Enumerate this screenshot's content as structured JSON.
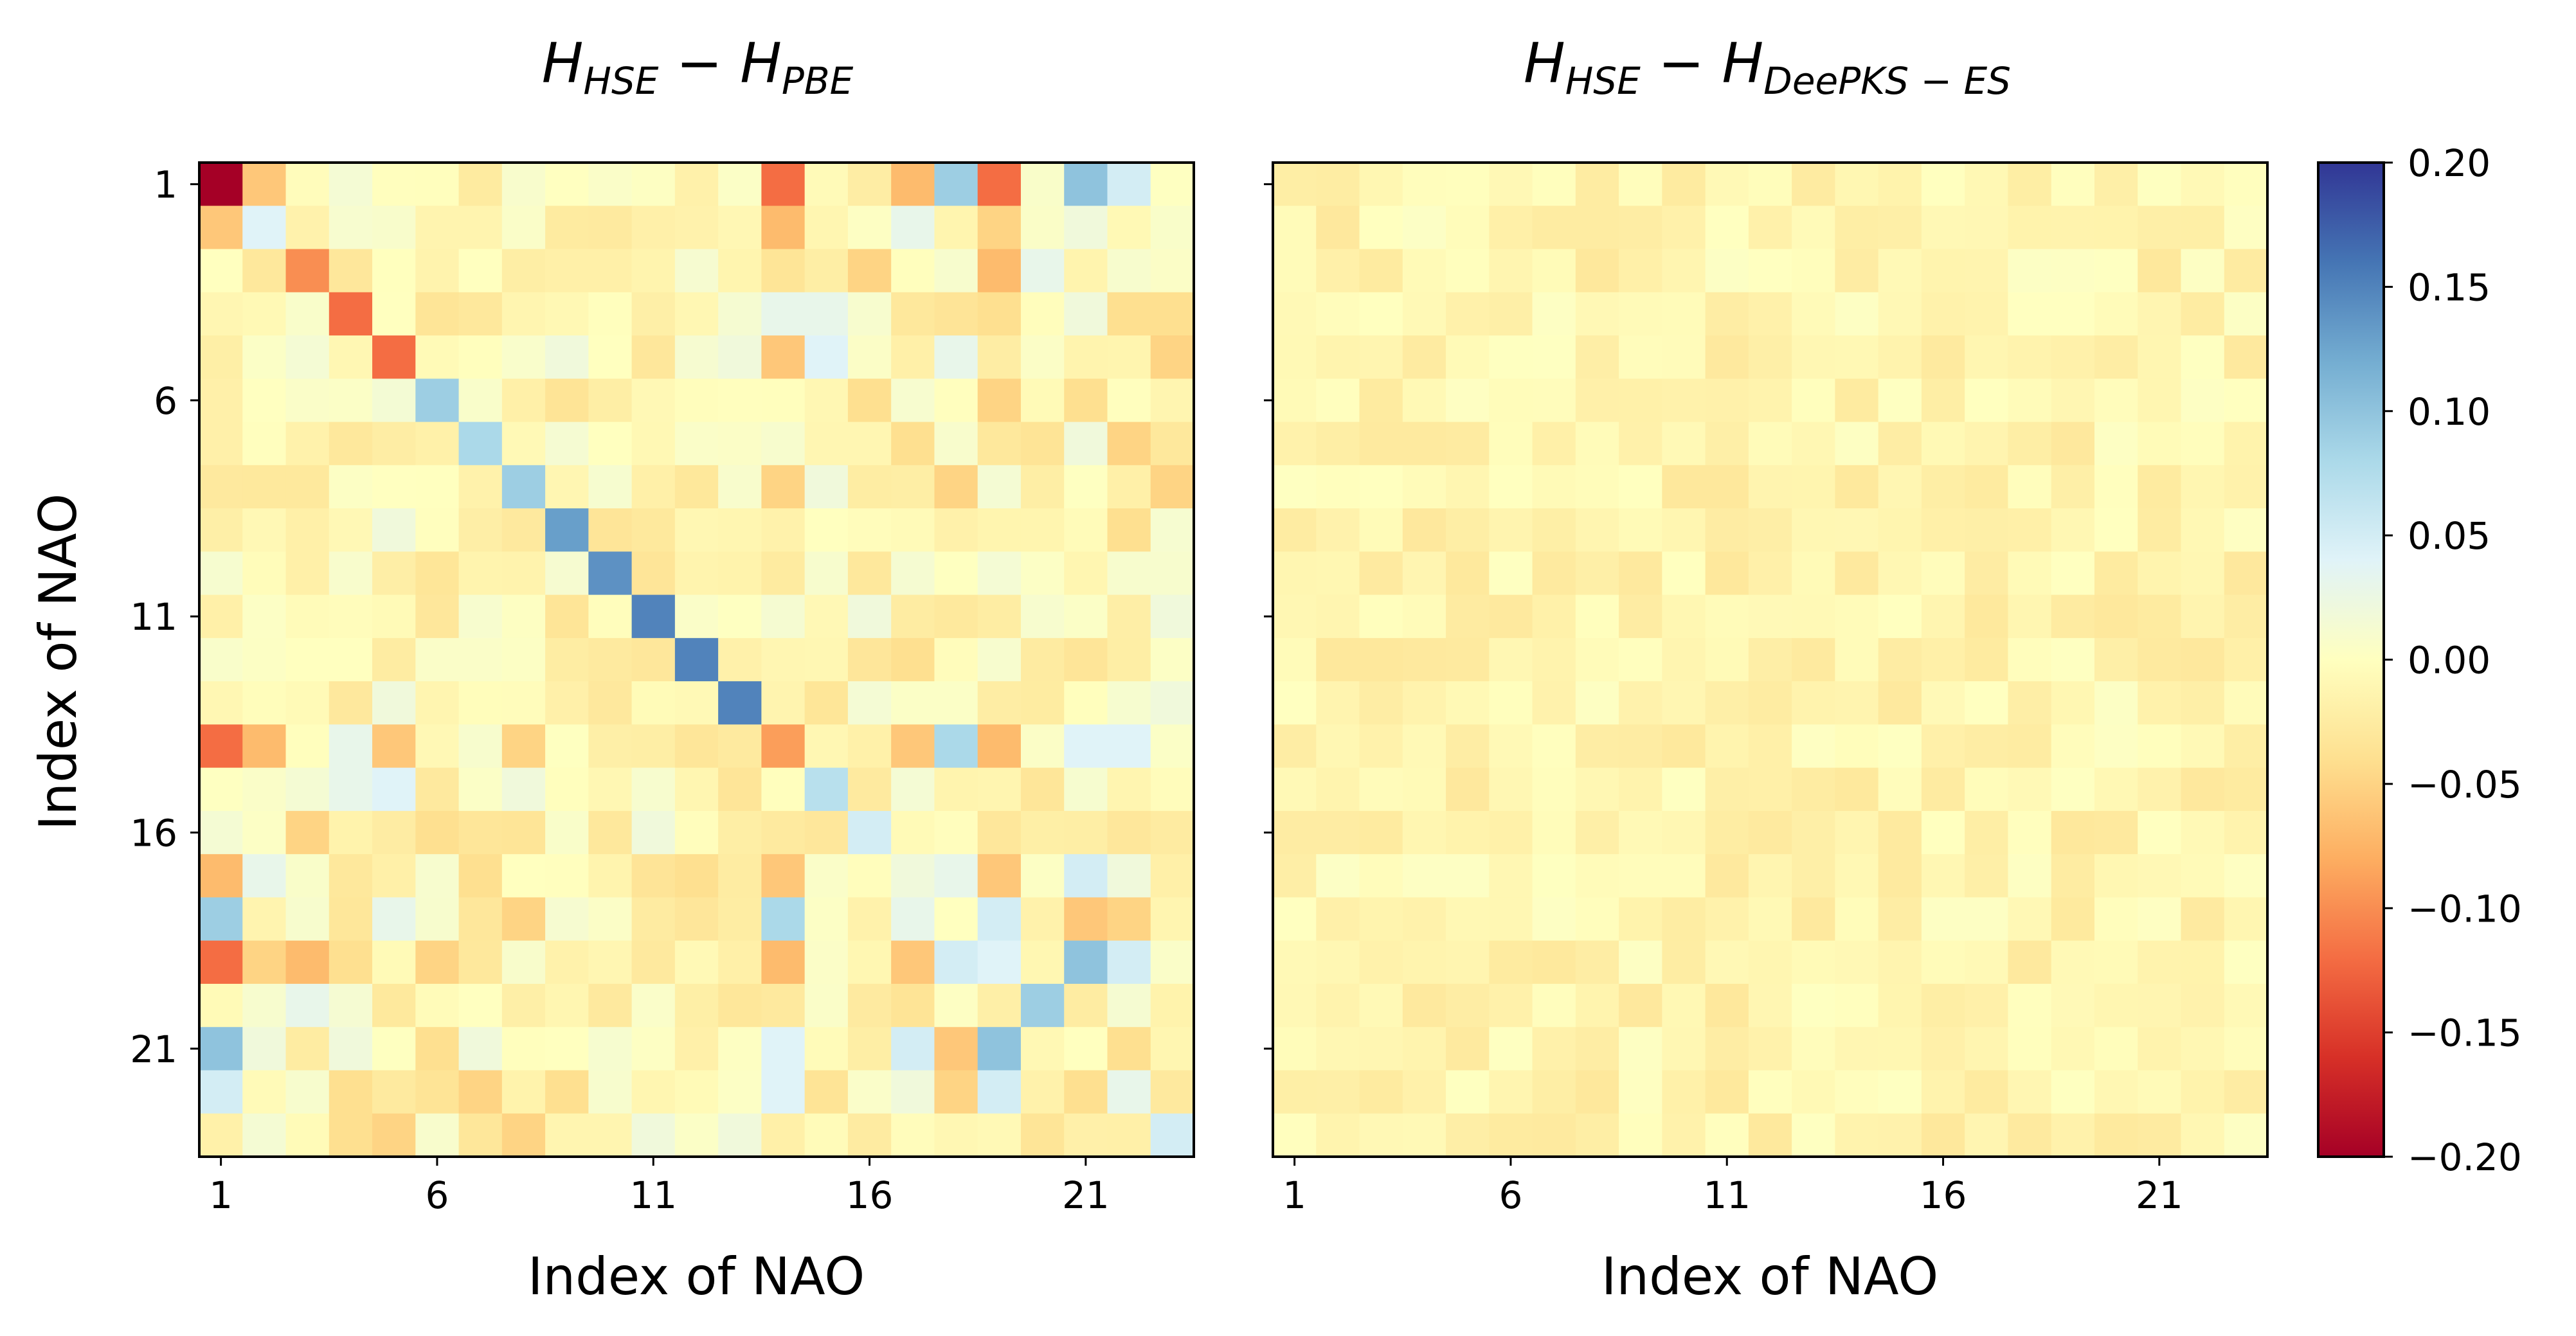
{
  "chart_data": [
    {
      "type": "heatmap",
      "title": {
        "base1": "H",
        "sub1": "HSE",
        "op": " − ",
        "base2": "H",
        "sub2": "PBE"
      },
      "xlabel": "Index of NAO",
      "ylabel": "Index of NAO",
      "xticks": [
        "1",
        "6",
        "11",
        "16",
        "21"
      ],
      "yticks": [
        "1",
        "6",
        "11",
        "16",
        "21"
      ],
      "size": 23,
      "diagonal": [
        -0.2,
        0.04,
        -0.1,
        -0.12,
        -0.12,
        0.09,
        0.08,
        0.09,
        0.13,
        0.14,
        0.15,
        0.15,
        0.15,
        -0.09,
        0.07,
        0.05,
        0.02,
        0.0,
        0.04,
        0.09,
        0.0,
        0.03,
        0.05
      ],
      "offdiagonal": [
        {
          "i": 1,
          "j": 2,
          "v": -0.06
        },
        {
          "i": 1,
          "j": 14,
          "v": -0.12
        },
        {
          "i": 1,
          "j": 17,
          "v": -0.07
        },
        {
          "i": 1,
          "j": 18,
          "v": 0.09
        },
        {
          "i": 1,
          "j": 19,
          "v": -0.12
        },
        {
          "i": 1,
          "j": 21,
          "v": 0.1
        },
        {
          "i": 1,
          "j": 22,
          "v": 0.05
        },
        {
          "i": 14,
          "j": 2,
          "v": -0.07
        },
        {
          "i": 14,
          "j": 4,
          "v": 0.03
        },
        {
          "i": 14,
          "j": 5,
          "v": -0.06
        },
        {
          "i": 14,
          "j": 7,
          "v": 0.01
        },
        {
          "i": 14,
          "j": 8,
          "v": -0.03
        },
        {
          "i": 14,
          "j": 17,
          "v": -0.06
        },
        {
          "i": 14,
          "j": 18,
          "v": 0.08
        },
        {
          "i": 14,
          "j": 19,
          "v": -0.07
        },
        {
          "i": 14,
          "j": 21,
          "v": 0.04
        },
        {
          "i": 14,
          "j": 22,
          "v": 0.04
        },
        {
          "i": 17,
          "j": 2,
          "v": 0.03
        },
        {
          "i": 17,
          "j": 4,
          "v": -0.03
        },
        {
          "i": 17,
          "j": 5,
          "v": -0.02
        },
        {
          "i": 17,
          "j": 7,
          "v": -0.03
        },
        {
          "i": 17,
          "j": 18,
          "v": 0.03
        },
        {
          "i": 17,
          "j": 19,
          "v": -0.06
        },
        {
          "i": 17,
          "j": 21,
          "v": 0.05
        },
        {
          "i": 17,
          "j": 22,
          "v": 0.02
        },
        {
          "i": 18,
          "j": 3,
          "v": 0.01
        },
        {
          "i": 18,
          "j": 5,
          "v": 0.03
        },
        {
          "i": 18,
          "j": 19,
          "v": 0.05
        },
        {
          "i": 18,
          "j": 21,
          "v": -0.06
        },
        {
          "i": 18,
          "j": 22,
          "v": -0.05
        },
        {
          "i": 19,
          "j": 2,
          "v": -0.05
        },
        {
          "i": 19,
          "j": 3,
          "v": -0.07
        },
        {
          "i": 19,
          "j": 4,
          "v": -0.04
        },
        {
          "i": 19,
          "j": 6,
          "v": -0.04
        },
        {
          "i": 19,
          "j": 7,
          "v": -0.03
        },
        {
          "i": 19,
          "j": 21,
          "v": 0.1
        },
        {
          "i": 19,
          "j": 22,
          "v": 0.05
        },
        {
          "i": 21,
          "j": 2,
          "v": 0.02
        },
        {
          "i": 21,
          "j": 4,
          "v": 0.02
        },
        {
          "i": 21,
          "j": 6,
          "v": -0.03
        },
        {
          "i": 21,
          "j": 7,
          "v": 0.01
        },
        {
          "i": 21,
          "j": 22,
          "v": -0.04
        },
        {
          "i": 22,
          "j": 3,
          "v": 0.02
        },
        {
          "i": 22,
          "j": 4,
          "v": -0.04
        },
        {
          "i": 22,
          "j": 7,
          "v": -0.04
        },
        {
          "i": 22,
          "j": 9,
          "v": -0.03
        },
        {
          "i": 22,
          "j": 10,
          "v": 0.01
        },
        {
          "i": 3,
          "j": 9,
          "v": -0.02
        },
        {
          "i": 3,
          "j": 10,
          "v": -0.02
        },
        {
          "i": 3,
          "j": 16,
          "v": -0.05
        },
        {
          "i": 3,
          "j": 20,
          "v": 0.05
        },
        {
          "i": 3,
          "j": 22,
          "v": 0.01
        },
        {
          "i": 4,
          "j": 7,
          "v": -0.03
        },
        {
          "i": 4,
          "j": 15,
          "v": 0.03
        },
        {
          "i": 4,
          "j": 21,
          "v": 0.02
        },
        {
          "i": 4,
          "j": 23,
          "v": -0.04
        },
        {
          "i": 5,
          "j": 23,
          "v": -0.06
        },
        {
          "i": 5,
          "j": 9,
          "v": 0.02
        },
        {
          "i": 5,
          "j": 13,
          "v": 0.02
        },
        {
          "i": 6,
          "j": 16,
          "v": -0.05
        },
        {
          "i": 6,
          "j": 19,
          "v": -0.05
        },
        {
          "i": 6,
          "j": 21,
          "v": -0.04
        },
        {
          "i": 7,
          "j": 4,
          "v": -0.03
        },
        {
          "i": 7,
          "j": 17,
          "v": -0.04
        },
        {
          "i": 7,
          "j": 21,
          "v": 0.02
        },
        {
          "i": 7,
          "j": 22,
          "v": -0.05
        },
        {
          "i": 8,
          "j": 14,
          "v": -0.05
        },
        {
          "i": 8,
          "j": 15,
          "v": 0.02
        },
        {
          "i": 8,
          "j": 18,
          "v": -0.05
        },
        {
          "i": 8,
          "j": 23,
          "v": -0.05
        },
        {
          "i": 9,
          "j": 5,
          "v": 0.02
        },
        {
          "i": 9,
          "j": 22,
          "v": -0.04
        },
        {
          "i": 10,
          "j": 16,
          "v": -0.04
        },
        {
          "i": 12,
          "j": 17,
          "v": -0.04
        },
        {
          "i": 13,
          "j": 23,
          "v": 0.02
        },
        {
          "i": 15,
          "j": 5,
          "v": 0.04
        },
        {
          "i": 16,
          "j": 10,
          "v": -0.03
        },
        {
          "i": 16,
          "j": 11,
          "v": 0.02
        },
        {
          "i": 16,
          "j": 3,
          "v": -0.05
        },
        {
          "i": 16,
          "j": 6,
          "v": -0.04
        },
        {
          "i": 20,
          "j": 3,
          "v": 0.03
        },
        {
          "i": 23,
          "j": 5,
          "v": -0.05
        },
        {
          "i": 23,
          "j": 8,
          "v": -0.05
        },
        {
          "i": 23,
          "j": 11,
          "v": 0.02
        },
        {
          "i": 23,
          "j": 13,
          "v": 0.02
        }
      ],
      "background_range": [
        -0.035,
        0.015
      ]
    },
    {
      "type": "heatmap",
      "title": {
        "base1": "H",
        "sub1": "HSE",
        "op": " − ",
        "base2": "H",
        "sub2": "DeePKS − ES"
      },
      "xlabel": "Index of NAO",
      "xticks": [
        "1",
        "6",
        "11",
        "16",
        "21"
      ],
      "size": 23,
      "background_range": [
        -0.03,
        0.004
      ]
    }
  ],
  "colorbar": {
    "colormap": "RdYlBu",
    "vmin": -0.2,
    "vmax": 0.2,
    "ticks": [
      "0.20",
      "0.15",
      "0.10",
      "0.05",
      "0.00",
      "−0.05",
      "−0.10",
      "−0.15",
      "−0.20"
    ]
  }
}
